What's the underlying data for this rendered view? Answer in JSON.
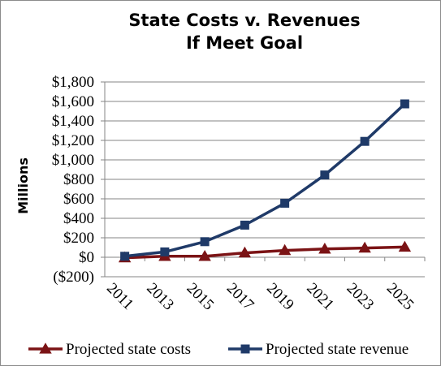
{
  "chart_data": {
    "type": "line",
    "title": [
      "State Costs v. Revenues",
      "If Meet Goal"
    ],
    "ylabel": "Millions",
    "xlabel": "",
    "categories": [
      "2011",
      "2013",
      "2015",
      "2017",
      "2019",
      "2021",
      "2023",
      "2025"
    ],
    "ylim": [
      -200,
      1800
    ],
    "yticks": [
      -200,
      0,
      200,
      400,
      600,
      800,
      1000,
      1200,
      1400,
      1600,
      1800
    ],
    "ytick_labels": [
      "($200)",
      "$0",
      "$200",
      "$400",
      "$600",
      "$800",
      "$1,000",
      "$1,200",
      "$1,400",
      "$1,600",
      "$1,800"
    ],
    "grid": true,
    "legend_position": "bottom",
    "series": [
      {
        "name": "Projected state costs",
        "marker": "triangle",
        "color": "#7b1315",
        "values": [
          -5,
          10,
          10,
          45,
          70,
          85,
          95,
          105
        ]
      },
      {
        "name": "Projected state revenue",
        "marker": "square",
        "color": "#1f3a68",
        "values": [
          10,
          55,
          160,
          330,
          555,
          845,
          1190,
          1575
        ]
      }
    ]
  }
}
